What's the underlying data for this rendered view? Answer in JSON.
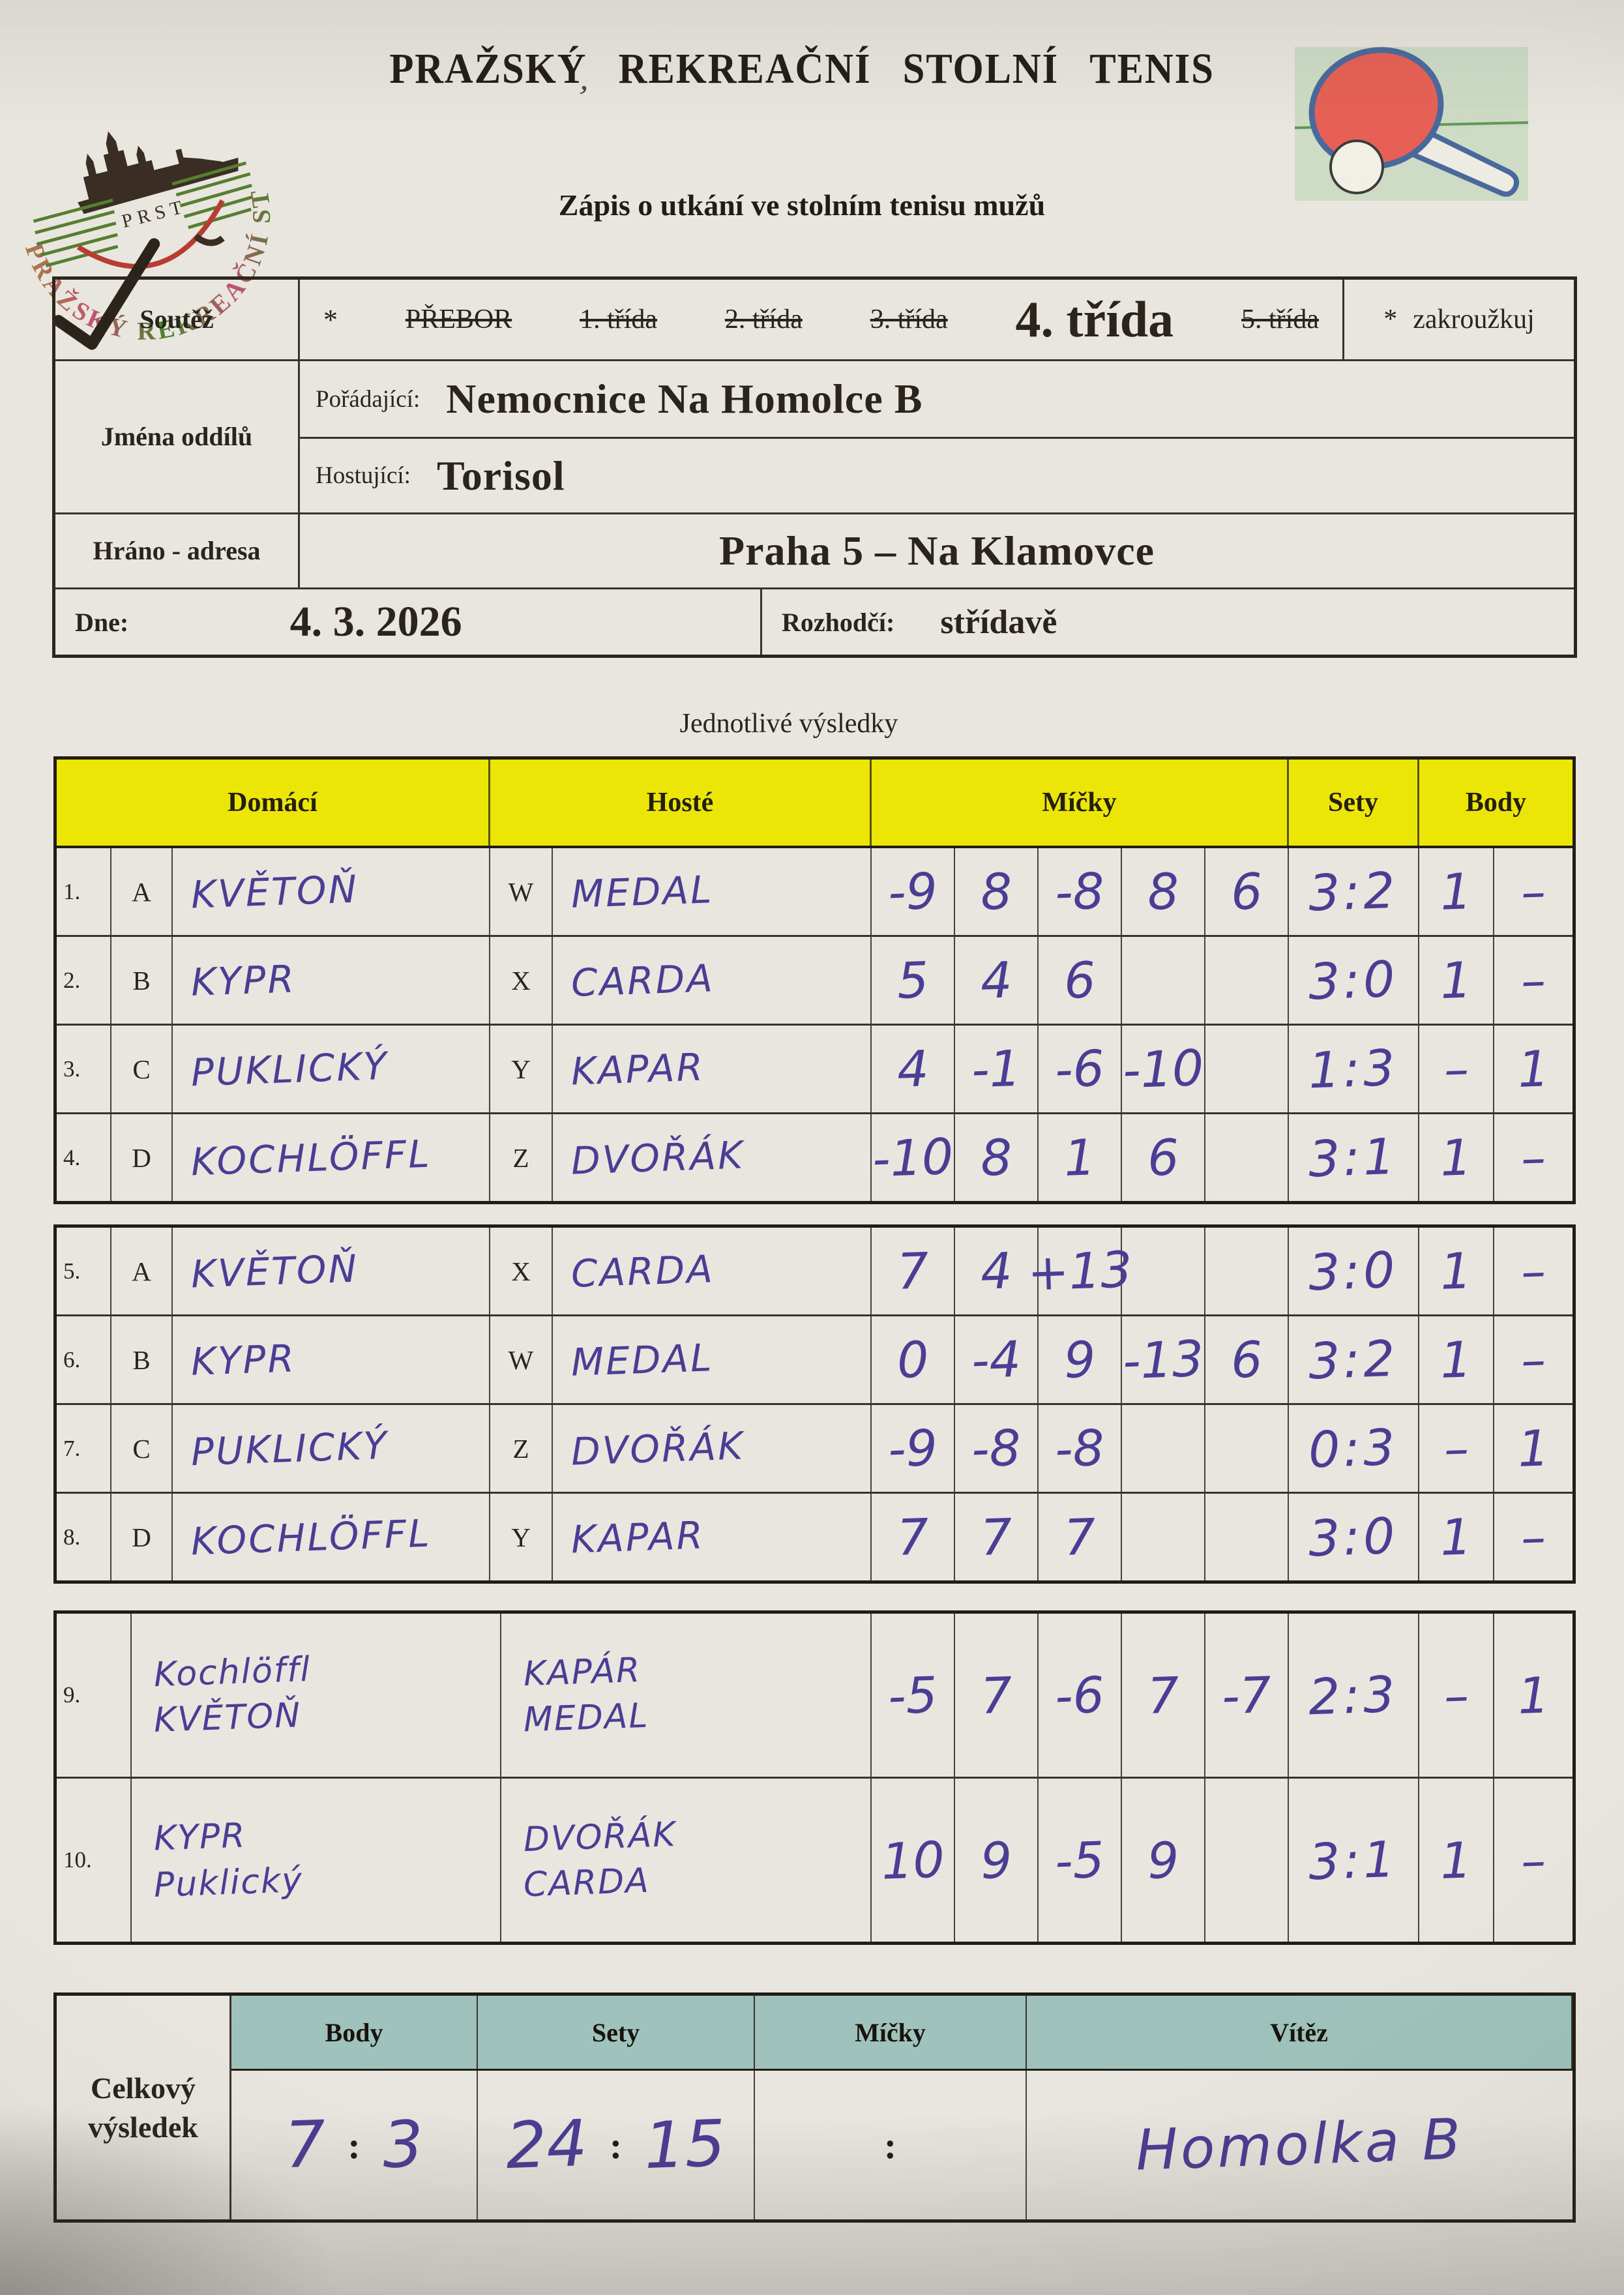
{
  "header": {
    "title": "PRAŽSKÝ  REKREAČNÍ  STOLNÍ  TENIS",
    "subtitle": "Zápis o utkání ve stolním tenisu mužů",
    "logo": {
      "ring_text": "PRAŽSKÝ REKREAČNÍ STOLNÍ TENIS",
      "abbr": "PRST"
    }
  },
  "form": {
    "soutez_label": "Soutěž",
    "asterisk": "*",
    "competition_options": [
      {
        "label": "PŘEBOR",
        "struck": true
      },
      {
        "label": "1. třída",
        "struck": true
      },
      {
        "label": "2. třída",
        "struck": true
      },
      {
        "label": "3. třída",
        "struck": true
      },
      {
        "label": "4. třída",
        "struck": false
      },
      {
        "label": "5. třída",
        "struck": true
      }
    ],
    "zakrouzkuj_label": "zakroužkuj",
    "jmena_oddilu_label": "Jména  oddílů",
    "poradajici_label": "Pořádající:",
    "poradajici_value": "Nemocnice Na Homolce B",
    "hostujici_label": "Hostující:",
    "hostujici_value": "Torisol",
    "hrano_label": "Hráno - adresa",
    "hrano_value": "Praha 5 – Na Klamovce",
    "dne_label": "Dne:",
    "dne_value": "4. 3. 2026",
    "rozhodci_label": "Rozhodčí:",
    "rozhodci_value": "střídavě"
  },
  "results": {
    "section_title": "Jednotlivé  výsledky",
    "columns": [
      "Domácí",
      "Hosté",
      "Míčky",
      "Sety",
      "Body"
    ],
    "singles1": [
      {
        "num": "1.",
        "home_key": "A",
        "home": "KVĚTOŇ",
        "away_key": "W",
        "away": "MEDAL",
        "balls": [
          "-9",
          "8",
          "-8",
          "8",
          "6"
        ],
        "sets": "3:2",
        "pts_home": "1",
        "pts_away": "–"
      },
      {
        "num": "2.",
        "home_key": "B",
        "home": "KYPR",
        "away_key": "X",
        "away": "CARDA",
        "balls": [
          "5",
          "4",
          "6",
          "",
          ""
        ],
        "sets": "3:0",
        "pts_home": "1",
        "pts_away": "–"
      },
      {
        "num": "3.",
        "home_key": "C",
        "home": "PUKLICKÝ",
        "away_key": "Y",
        "away": "KAPAR",
        "balls": [
          "4",
          "-1",
          "-6",
          "-10",
          ""
        ],
        "sets": "1:3",
        "pts_home": "–",
        "pts_away": "1"
      },
      {
        "num": "4.",
        "home_key": "D",
        "home": "KOCHLÖFFL",
        "away_key": "Z",
        "away": "DVOŘÁK",
        "balls": [
          "-10",
          "8",
          "1",
          "6",
          ""
        ],
        "sets": "3:1",
        "pts_home": "1",
        "pts_away": "–"
      }
    ],
    "singles2": [
      {
        "num": "5.",
        "home_key": "A",
        "home": "KVĚTOŇ",
        "away_key": "X",
        "away": "CARDA",
        "balls": [
          "7",
          "4",
          "+13",
          "",
          ""
        ],
        "sets": "3:0",
        "pts_home": "1",
        "pts_away": "–"
      },
      {
        "num": "6.",
        "home_key": "B",
        "home": "KYPR",
        "away_key": "W",
        "away": "MEDAL",
        "balls": [
          "0",
          "-4",
          "9",
          "-13",
          "6"
        ],
        "sets": "3:2",
        "pts_home": "1",
        "pts_away": "–"
      },
      {
        "num": "7.",
        "home_key": "C",
        "home": "PUKLICKÝ",
        "away_key": "Z",
        "away": "DVOŘÁK",
        "balls": [
          "-9",
          "-8",
          "-8",
          "",
          ""
        ],
        "sets": "0:3",
        "pts_home": "–",
        "pts_away": "1"
      },
      {
        "num": "8.",
        "home_key": "D",
        "home": "KOCHLÖFFL",
        "away_key": "Y",
        "away": "KAPAR",
        "balls": [
          "7",
          "7",
          "7",
          "",
          ""
        ],
        "sets": "3:0",
        "pts_home": "1",
        "pts_away": "–"
      }
    ],
    "doubles": [
      {
        "num": "9.",
        "home": [
          "Kochlöffl",
          "KVĚTOŇ"
        ],
        "away": [
          "KAPÁR",
          "MEDAL"
        ],
        "balls": [
          "-5",
          "7",
          "-6",
          "7",
          "-7"
        ],
        "sets": "2:3",
        "pts_home": "–",
        "pts_away": "1"
      },
      {
        "num": "10.",
        "home": [
          "KYPR",
          "Puklický"
        ],
        "away": [
          "DVOŘÁK",
          "CARDA"
        ],
        "balls": [
          "10",
          "9",
          "-5",
          "9",
          ""
        ],
        "sets": "3:1",
        "pts_home": "1",
        "pts_away": "–"
      }
    ]
  },
  "summary": {
    "label": "Celkový výsledek",
    "columns": [
      "Body",
      "Sety",
      "Míčky",
      "Vítěz"
    ],
    "body": [
      "7",
      "3"
    ],
    "sety": [
      "24",
      "15"
    ],
    "micky": [
      "",
      ""
    ],
    "colon": ":",
    "vitez": "Homolka B"
  },
  "colors": {
    "paper": "#e9e6e0",
    "yellow_header": "#ece607",
    "teal_header": "#9fc3bc",
    "ink": "#4a3d94",
    "print": "#211c16"
  }
}
